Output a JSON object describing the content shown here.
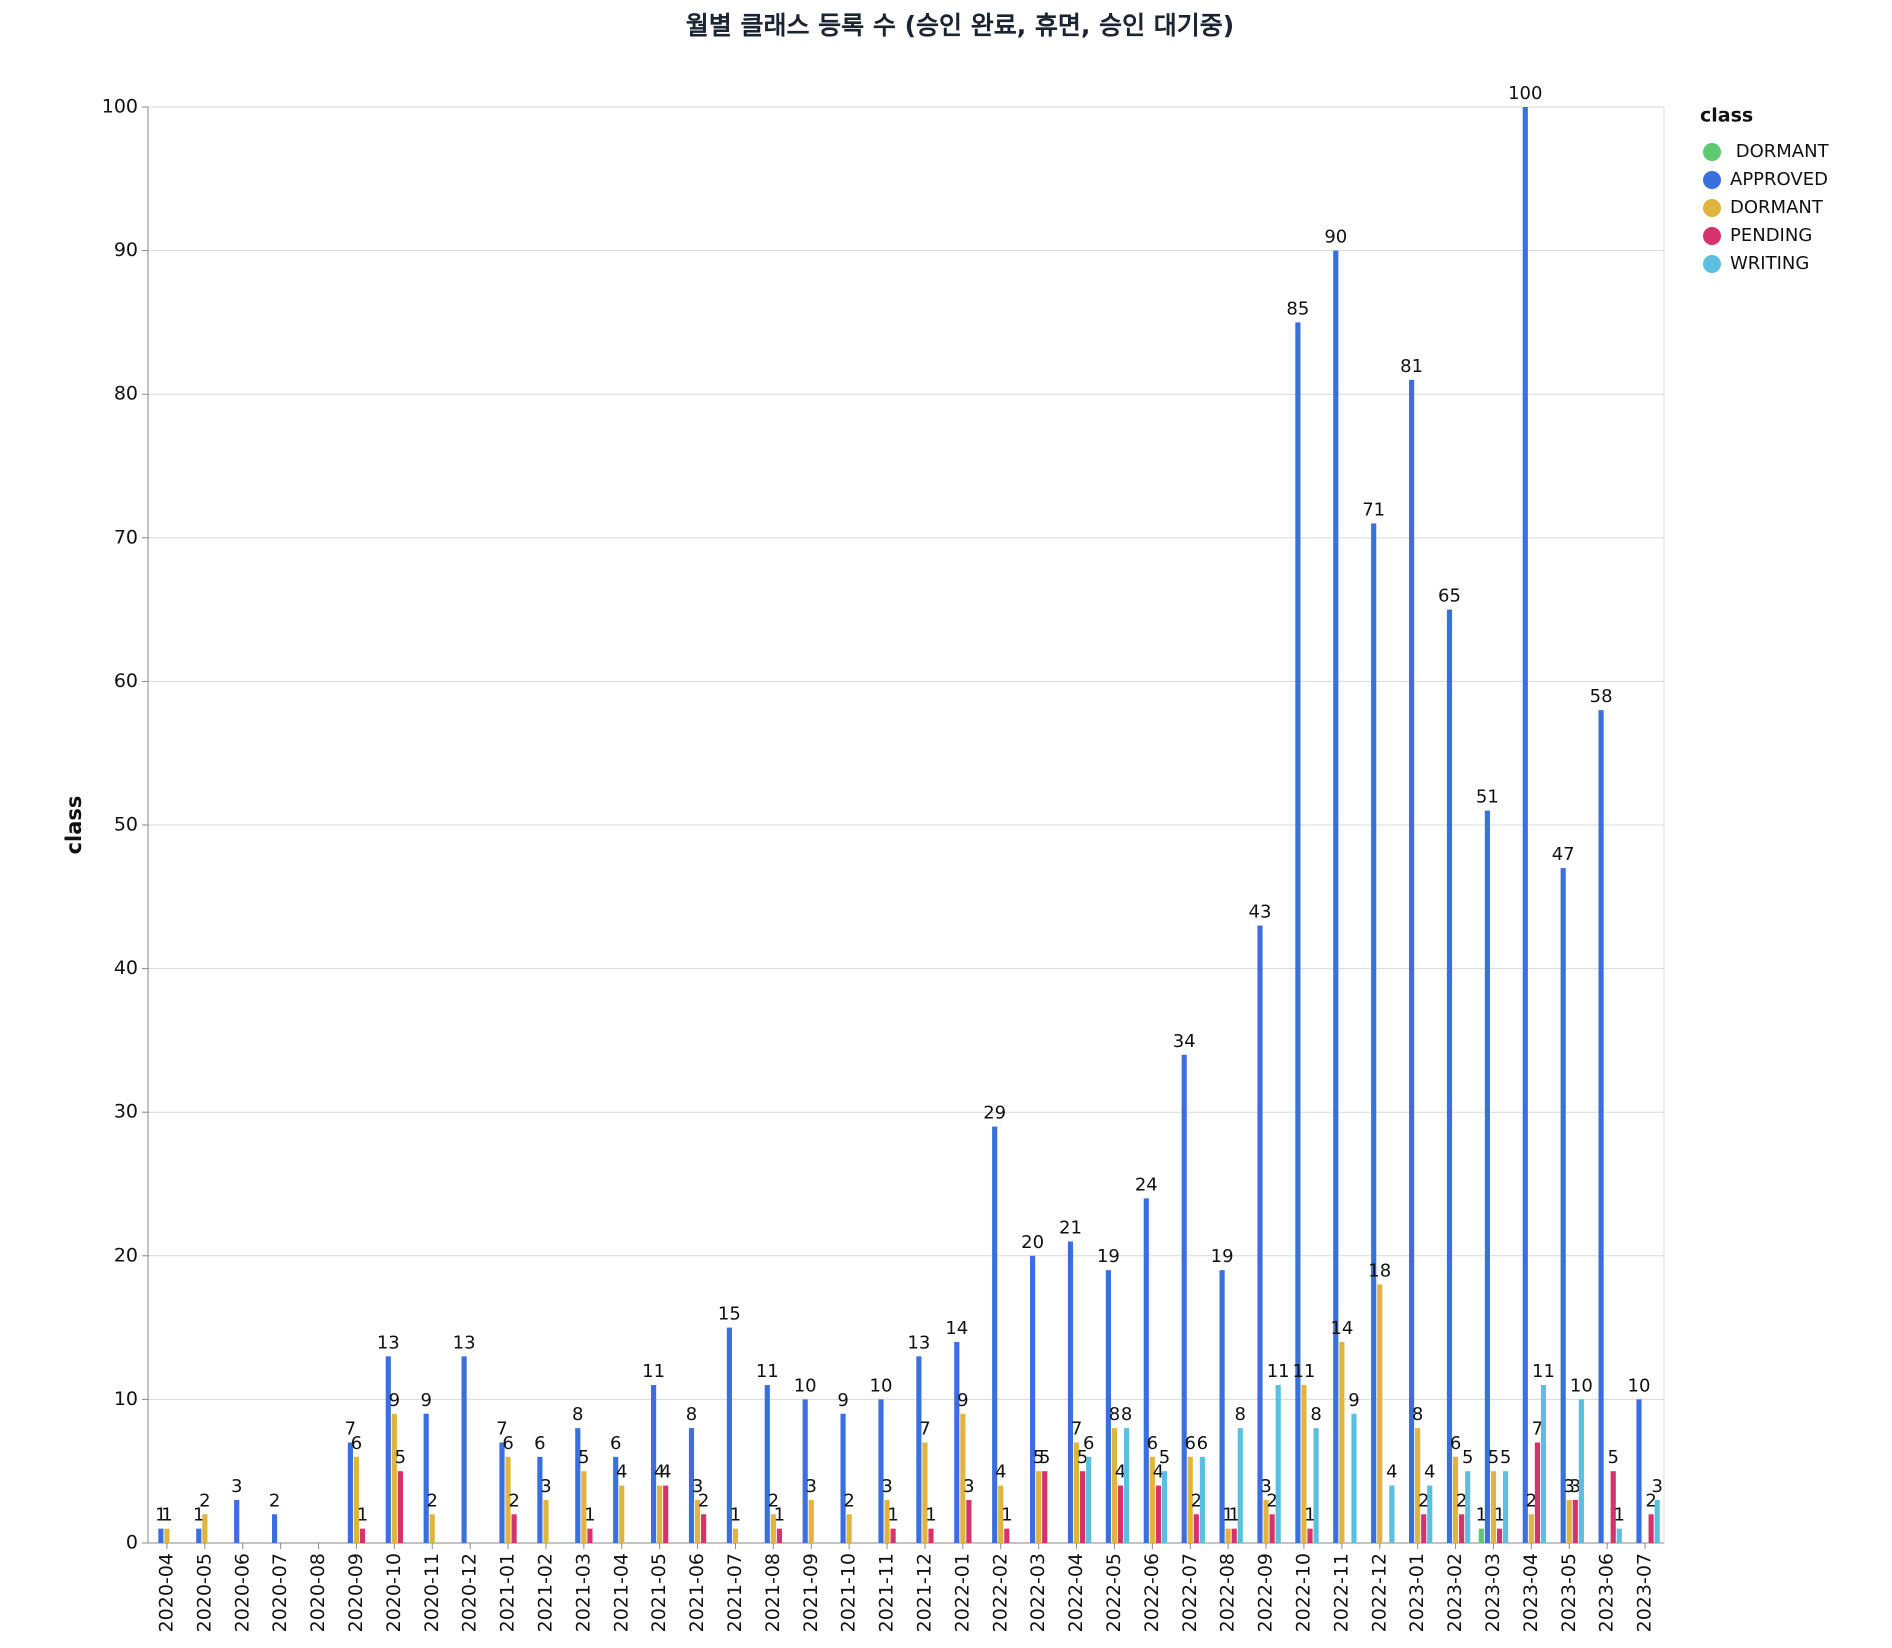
{
  "chart_data": {
    "type": "grouped-bar",
    "title": "월별 클래스 등록 수 (승인 완료, 휴면, 승인 대기중)",
    "y_label": "class",
    "legend_title": "class",
    "categories": [
      "2020-04",
      "2020-05",
      "2020-06",
      "2020-07",
      "2020-08",
      "2020-09",
      "2020-10",
      "2020-11",
      "2020-12",
      "2021-01",
      "2021-02",
      "2021-03",
      "2021-04",
      "2021-05",
      "2021-06",
      "2021-07",
      "2021-08",
      "2021-09",
      "2021-10",
      "2021-11",
      "2021-12",
      "2022-01",
      "2022-02",
      "2022-03",
      "2022-04",
      "2022-05",
      "2022-06",
      "2022-07",
      "2022-08",
      "2022-09",
      "2022-10",
      "2022-11",
      "2022-12",
      "2023-01",
      "2023-02",
      "2023-03",
      "2023-04",
      "2023-05",
      "2023-06",
      "2023-07"
    ],
    "series": [
      {
        "name": " DORMANT",
        "color": "#5cc96f",
        "values": [
          null,
          null,
          null,
          null,
          null,
          null,
          null,
          null,
          null,
          null,
          null,
          null,
          null,
          null,
          null,
          null,
          null,
          null,
          null,
          null,
          null,
          null,
          null,
          null,
          null,
          null,
          null,
          null,
          null,
          null,
          null,
          null,
          null,
          null,
          null,
          1,
          null,
          null,
          null,
          null
        ]
      },
      {
        "name": "APPROVED",
        "color": "#3a6fdf",
        "values": [
          1,
          1,
          3,
          2,
          null,
          7,
          13,
          9,
          13,
          7,
          6,
          8,
          6,
          11,
          8,
          15,
          11,
          10,
          9,
          10,
          13,
          14,
          29,
          20,
          21,
          19,
          24,
          34,
          19,
          43,
          85,
          90,
          71,
          81,
          65,
          51,
          100,
          47,
          58,
          10
        ]
      },
      {
        "name": "DORMANT",
        "color": "#e0b43d",
        "values": [
          1,
          2,
          null,
          null,
          null,
          6,
          9,
          2,
          null,
          6,
          3,
          5,
          4,
          4,
          3,
          1,
          2,
          3,
          2,
          3,
          7,
          9,
          4,
          5,
          7,
          8,
          6,
          6,
          1,
          3,
          11,
          14,
          18,
          8,
          6,
          5,
          2,
          3,
          null,
          null
        ]
      },
      {
        "name": "PENDING",
        "color": "#d6336c",
        "values": [
          null,
          null,
          null,
          null,
          null,
          1,
          5,
          null,
          null,
          2,
          null,
          1,
          null,
          4,
          2,
          null,
          1,
          null,
          null,
          1,
          1,
          3,
          1,
          5,
          5,
          4,
          4,
          2,
          1,
          2,
          1,
          null,
          null,
          2,
          2,
          1,
          7,
          3,
          5,
          2
        ]
      },
      {
        "name": "WRITING",
        "color": "#5bc0e0",
        "values": [
          null,
          null,
          null,
          null,
          null,
          null,
          null,
          null,
          null,
          null,
          null,
          null,
          null,
          null,
          null,
          null,
          null,
          null,
          null,
          null,
          null,
          null,
          null,
          null,
          6,
          8,
          5,
          6,
          8,
          11,
          8,
          9,
          4,
          4,
          5,
          5,
          11,
          10,
          1,
          3
        ]
      }
    ],
    "ylim": [
      0,
      100
    ],
    "yticks": [
      0,
      10,
      20,
      30,
      40,
      50,
      60,
      70,
      80,
      90,
      100
    ],
    "grid": true
  }
}
